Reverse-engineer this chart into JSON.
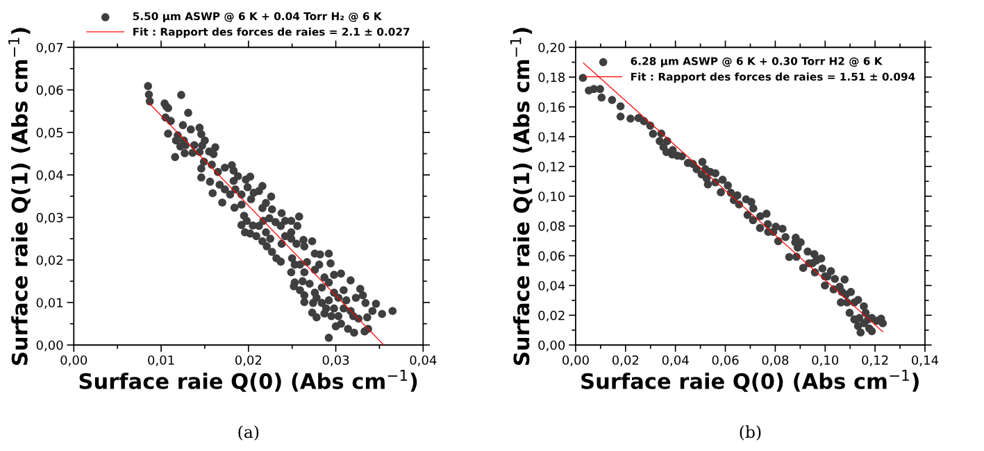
{
  "chart_data": [
    {
      "type": "scatter",
      "xlabel": "Surface raie Q(0) (Abs cm$^{−1}$)",
      "ylabel": "Surface raie Q(1) (Abs cm$^{−1}$)",
      "annotations": [
        "(a)"
      ],
      "legend": "top",
      "grid": false,
      "xlim": [
        0,
        0.04
      ],
      "ylim": [
        0,
        0.07
      ],
      "xticks": [
        {
          "value": 0,
          "label": "0,00"
        },
        {
          "value": 0.005,
          "label": null
        },
        {
          "value": 0.01,
          "label": "0,01"
        },
        {
          "value": 0.015,
          "label": null
        },
        {
          "value": 0.02,
          "label": "0,02"
        },
        {
          "value": 0.025,
          "label": null
        },
        {
          "value": 0.03,
          "label": "0,03"
        },
        {
          "value": 0.035,
          "label": null
        },
        {
          "value": 0.04,
          "label": "0,04"
        }
      ],
      "yticks": [
        {
          "value": 0,
          "label": "0,00"
        },
        {
          "value": 0.005,
          "label": null
        },
        {
          "value": 0.01,
          "label": "0,01"
        },
        {
          "value": 0.015,
          "label": null
        },
        {
          "value": 0.02,
          "label": "0,02"
        },
        {
          "value": 0.025,
          "label": null
        },
        {
          "value": 0.03,
          "label": "0,03"
        },
        {
          "value": 0.035,
          "label": null
        },
        {
          "value": 0.04,
          "label": "0,04"
        },
        {
          "value": 0.045,
          "label": null
        },
        {
          "value": 0.05,
          "label": "0,05"
        },
        {
          "value": 0.055,
          "label": null
        },
        {
          "value": 0.06,
          "label": "0,06"
        },
        {
          "value": 0.065,
          "label": null
        },
        {
          "value": 0.07,
          "label": "0,07"
        }
      ],
      "series": [
        {
          "name": "5.50 µm ASWP @ 6 K + 0.04 Torr H₂ @ 6 K",
          "marker": "circle",
          "color": "#3f3f3f",
          "x": [
            0.0085,
            0.0086,
            0.0087,
            0.0104,
            0.0106,
            0.0108,
            0.0105,
            0.0111,
            0.0123,
            0.0131,
            0.0125,
            0.0134,
            0.0144,
            0.0146,
            0.0108,
            0.0119,
            0.0117,
            0.0126,
            0.0122,
            0.0128,
            0.0116,
            0.0127,
            0.0136,
            0.0138,
            0.015,
            0.0147,
            0.0144,
            0.0155,
            0.0162,
            0.016,
            0.0149,
            0.0158,
            0.0146,
            0.0146,
            0.0156,
            0.0159,
            0.017,
            0.0165,
            0.0173,
            0.0181,
            0.0183,
            0.0188,
            0.0167,
            0.0173,
            0.0183,
            0.0185,
            0.0179,
            0.0184,
            0.0192,
            0.0197,
            0.0202,
            0.0199,
            0.0192,
            0.0206,
            0.0216,
            0.0212,
            0.0226,
            0.0203,
            0.0195,
            0.0198,
            0.0192,
            0.0196,
            0.0202,
            0.0205,
            0.0212,
            0.0209,
            0.022,
            0.0216,
            0.0227,
            0.0217,
            0.0224,
            0.022,
            0.0216,
            0.0221,
            0.0225,
            0.0227,
            0.0232,
            0.0237,
            0.0231,
            0.0238,
            0.0237,
            0.0242,
            0.0249,
            0.0256,
            0.0258,
            0.0249,
            0.0242,
            0.0238,
            0.0249,
            0.0255,
            0.0263,
            0.0273,
            0.0264,
            0.0276,
            0.0282,
            0.0292,
            0.0294,
            0.025,
            0.0253,
            0.0249,
            0.0259,
            0.0267,
            0.0264,
            0.0276,
            0.0281,
            0.0253,
            0.0252,
            0.0262,
            0.027,
            0.0259,
            0.0264,
            0.0264,
            0.0274,
            0.0276,
            0.0284,
            0.0287,
            0.0292,
            0.0298,
            0.0306,
            0.0273,
            0.0278,
            0.0287,
            0.0284,
            0.0292,
            0.0289,
            0.0298,
            0.0295,
            0.03,
            0.0306,
            0.0292,
            0.0303,
            0.0309,
            0.0317,
            0.0312,
            0.0317,
            0.0314,
            0.0321,
            0.0326,
            0.0328,
            0.0331,
            0.0323,
            0.0334,
            0.0336,
            0.0333,
            0.0337,
            0.0342,
            0.0346,
            0.0353,
            0.0365,
            0.0309,
            0.0303,
            0.032,
            0.0298,
            0.0278
          ],
          "values": [
            0.0609,
            0.0589,
            0.0573,
            0.0568,
            0.0561,
            0.0557,
            0.0535,
            0.0527,
            0.0588,
            0.0546,
            0.0517,
            0.0507,
            0.0511,
            0.0496,
            0.0497,
            0.0493,
            0.0481,
            0.0481,
            0.0467,
            0.047,
            0.0442,
            0.0451,
            0.0452,
            0.047,
            0.0481,
            0.0469,
            0.0454,
            0.0455,
            0.0465,
            0.0449,
            0.0431,
            0.0424,
            0.0415,
            0.0394,
            0.0384,
            0.0357,
            0.0335,
            0.0407,
            0.0417,
            0.0423,
            0.041,
            0.0397,
            0.0377,
            0.0366,
            0.0386,
            0.0366,
            0.0354,
            0.0323,
            0.033,
            0.0389,
            0.0396,
            0.0371,
            0.0354,
            0.0358,
            0.0374,
            0.0362,
            0.0349,
            0.0343,
            0.0304,
            0.0292,
            0.0282,
            0.0265,
            0.0262,
            0.0281,
            0.028,
            0.0256,
            0.0334,
            0.0322,
            0.0319,
            0.0292,
            0.0298,
            0.0265,
            0.0244,
            0.0232,
            0.025,
            0.0219,
            0.0204,
            0.0196,
            0.0289,
            0.031,
            0.028,
            0.0292,
            0.0292,
            0.028,
            0.0302,
            0.0265,
            0.0256,
            0.0238,
            0.025,
            0.0238,
            0.0247,
            0.0244,
            0.0232,
            0.0215,
            0.0213,
            0.0215,
            0.0192,
            0.0204,
            0.0189,
            0.0171,
            0.0189,
            0.0195,
            0.0171,
            0.0177,
            0.0189,
            0.0147,
            0.0138,
            0.015,
            0.0144,
            0.0129,
            0.0117,
            0.0101,
            0.0099,
            0.0123,
            0.0135,
            0.0159,
            0.0147,
            0.0165,
            0.0168,
            0.0076,
            0.0065,
            0.0074,
            0.0099,
            0.0105,
            0.0086,
            0.0086,
            0.0068,
            0.0044,
            0.005,
            0.0017,
            0.0111,
            0.0129,
            0.0152,
            0.0105,
            0.008,
            0.0038,
            0.0029,
            0.0062,
            0.0132,
            0.0117,
            0.0111,
            0.0099,
            0.0065,
            0.0032,
            0.0038,
            0.008,
            0.0097,
            0.0073,
            0.008,
            0.0086,
            0.0068,
            0.0068,
            0.0123,
            0.0111
          ]
        },
        {
          "name": "Fit : Rapport des forces de raies = 2.1 ± 0.027",
          "type": "line",
          "color": "#ff0000",
          "x": [
            0.0086,
            0.0355
          ],
          "values": [
            0.0569,
            0.0
          ]
        }
      ]
    },
    {
      "type": "scatter",
      "xlabel": "Surface raie Q(0) (Abs cm$^{−1}$)",
      "ylabel": "Surface raie Q(1) (Abs cm$^{−1}$)",
      "annotations": [
        "(b)"
      ],
      "legend": "top right",
      "grid": false,
      "xlim": [
        0,
        0.14
      ],
      "ylim": [
        0,
        0.2
      ],
      "xticks": [
        {
          "value": 0,
          "label": "0,00"
        },
        {
          "value": 0.01,
          "label": null
        },
        {
          "value": 0.02,
          "label": "0,02"
        },
        {
          "value": 0.03,
          "label": null
        },
        {
          "value": 0.04,
          "label": "0,04"
        },
        {
          "value": 0.05,
          "label": null
        },
        {
          "value": 0.06,
          "label": "0,06"
        },
        {
          "value": 0.07,
          "label": null
        },
        {
          "value": 0.08,
          "label": "0,08"
        },
        {
          "value": 0.09,
          "label": null
        },
        {
          "value": 0.1,
          "label": "0,10"
        },
        {
          "value": 0.11,
          "label": null
        },
        {
          "value": 0.12,
          "label": "0,12"
        },
        {
          "value": 0.13,
          "label": null
        },
        {
          "value": 0.14,
          "label": "0,14"
        }
      ],
      "yticks": [
        {
          "value": 0,
          "label": "0,00"
        },
        {
          "value": 0.01,
          "label": null
        },
        {
          "value": 0.02,
          "label": "0,02"
        },
        {
          "value": 0.03,
          "label": null
        },
        {
          "value": 0.04,
          "label": "0,04"
        },
        {
          "value": 0.05,
          "label": null
        },
        {
          "value": 0.06,
          "label": "0,06"
        },
        {
          "value": 0.07,
          "label": null
        },
        {
          "value": 0.08,
          "label": "0,08"
        },
        {
          "value": 0.09,
          "label": null
        },
        {
          "value": 0.1,
          "label": "0,10"
        },
        {
          "value": 0.11,
          "label": null
        },
        {
          "value": 0.12,
          "label": "0,12"
        },
        {
          "value": 0.13,
          "label": null
        },
        {
          "value": 0.14,
          "label": "0,14"
        },
        {
          "value": 0.15,
          "label": null
        },
        {
          "value": 0.16,
          "label": "0,16"
        },
        {
          "value": 0.17,
          "label": null
        },
        {
          "value": 0.18,
          "label": "0,18"
        },
        {
          "value": 0.19,
          "label": null
        },
        {
          "value": 0.2,
          "label": "0,20"
        }
      ],
      "series": [
        {
          "name": "6.28 µm ASWP @ 6 K + 0.30 Torr H2 @ 6 K",
          "marker": "circle",
          "color": "#3f3f3f",
          "x": [
            0.0029,
            0.0053,
            0.0073,
            0.0098,
            0.0104,
            0.0146,
            0.018,
            0.018,
            0.022,
            0.0252,
            0.0274,
            0.0299,
            0.031,
            0.0343,
            0.0337,
            0.0367,
            0.0352,
            0.0364,
            0.0389,
            0.0387,
            0.0408,
            0.0426,
            0.045,
            0.047,
            0.0485,
            0.0508,
            0.0505,
            0.052,
            0.0525,
            0.053,
            0.054,
            0.056,
            0.056,
            0.0589,
            0.0582,
            0.061,
            0.0622,
            0.0634,
            0.0648,
            0.0655,
            0.0683,
            0.0704,
            0.0712,
            0.0689,
            0.0711,
            0.074,
            0.0765,
            0.0739,
            0.077,
            0.0772,
            0.0802,
            0.0829,
            0.0812,
            0.0841,
            0.0856,
            0.0882,
            0.089,
            0.0902,
            0.0885,
            0.0912,
            0.093,
            0.0935,
            0.0957,
            0.0984,
            0.0959,
            0.0989,
            0.1009,
            0.0999,
            0.1023,
            0.1039,
            0.1034,
            0.1058,
            0.1078,
            0.1063,
            0.1083,
            0.1103,
            0.1098,
            0.1117,
            0.1132,
            0.1117,
            0.1132,
            0.1142,
            0.1155,
            0.1162,
            0.1157,
            0.1177,
            0.1187,
            0.1187,
            0.1207,
            0.1224,
            0.1231,
            0.1172,
            0.1137,
            0.1088,
            0.1068,
            0.0949,
            0.0964,
            0.0792,
            0.088,
            0.0999
          ],
          "values": [
            0.1795,
            0.171,
            0.172,
            0.172,
            0.1663,
            0.1646,
            0.1604,
            0.1535,
            0.1521,
            0.1525,
            0.1504,
            0.1474,
            0.1419,
            0.1421,
            0.137,
            0.137,
            0.133,
            0.1296,
            0.131,
            0.128,
            0.1272,
            0.1268,
            0.1223,
            0.1216,
            0.1181,
            0.123,
            0.1146,
            0.1181,
            0.1119,
            0.1079,
            0.1163,
            0.1154,
            0.1093,
            0.111,
            0.1026,
            0.1072,
            0.1023,
            0.0974,
            0.1005,
            0.0944,
            0.0979,
            0.0961,
            0.0918,
            0.0874,
            0.0839,
            0.0865,
            0.0882,
            0.0786,
            0.0812,
            0.076,
            0.0795,
            0.0781,
            0.0698,
            0.0725,
            0.0591,
            0.0721,
            0.0654,
            0.069,
            0.0593,
            0.0518,
            0.0628,
            0.0549,
            0.061,
            0.0581,
            0.0488,
            0.0514,
            0.0461,
            0.04,
            0.0496,
            0.0444,
            0.0374,
            0.0391,
            0.044,
            0.0286,
            0.0339,
            0.0356,
            0.0216,
            0.0286,
            0.0303,
            0.0172,
            0.0128,
            0.0084,
            0.026,
            0.0216,
            0.0146,
            0.0111,
            0.0181,
            0.0093,
            0.0163,
            0.0177,
            0.0146,
            0.0172,
            0.0181,
            0.0286,
            0.0356,
            0.0549,
            0.0567,
            0.076,
            0.069,
            0.0461
          ]
        },
        {
          "name": "Fit : Rapport des forces de raies = 1.51 ± 0.094",
          "type": "line",
          "color": "#ff0000",
          "x": [
            0.0031,
            0.1231
          ],
          "values": [
            0.1895,
            0.0089
          ]
        }
      ]
    }
  ]
}
